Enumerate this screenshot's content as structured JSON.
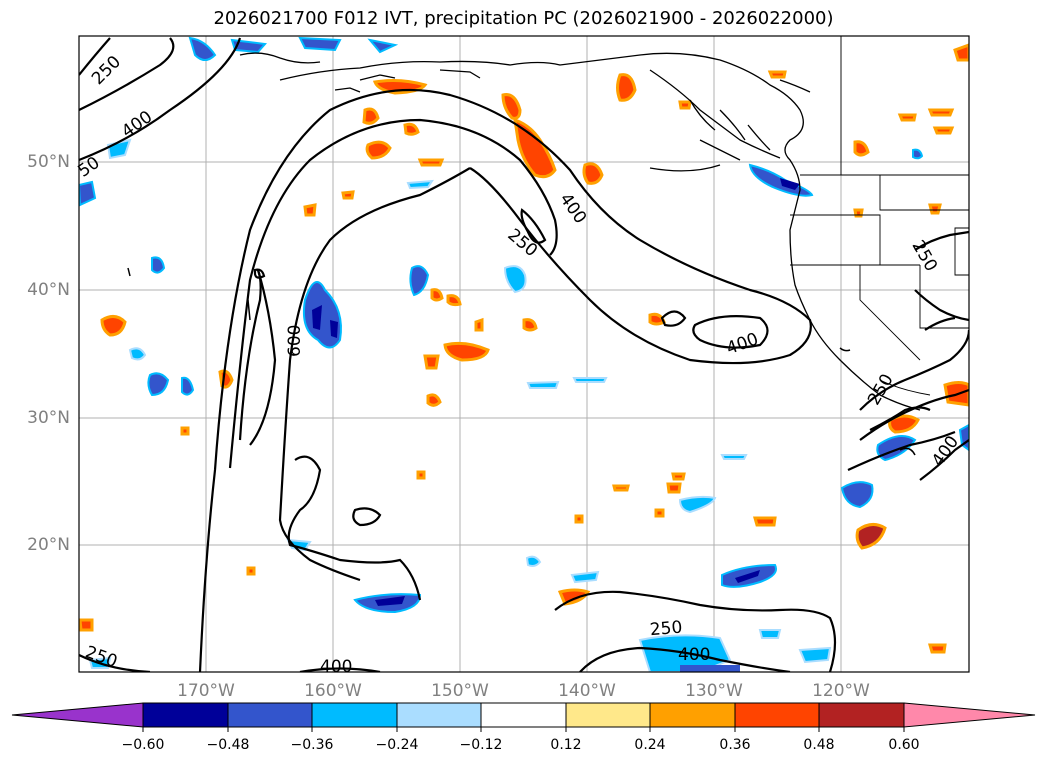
{
  "title": "2026021700 F012 IVT, precipitation PC (2026021900 - 2026022000)",
  "lat_labels": [
    "50°N",
    "40°N",
    "30°N",
    "20°N"
  ],
  "lon_labels": [
    "170°W",
    "160°W",
    "150°W",
    "140°W",
    "130°W",
    "120°W"
  ],
  "contour_labels": {
    "c250_nw": "250",
    "c400_nw": "400",
    "c50_w": "50",
    "c400_center": "400",
    "c250_center": "250",
    "c600": "600",
    "c400_east": "400",
    "c250_east": "250",
    "c250_coast": "250",
    "c400_coast": "400",
    "c250_sw": "250",
    "c400_sw": "400",
    "c250_s": "250",
    "c400_s": "400"
  },
  "colorbar": {
    "ticks": [
      "−0.60",
      "−0.48",
      "−0.36",
      "−0.24",
      "−0.12",
      "0.12",
      "0.24",
      "0.36",
      "0.48",
      "0.60"
    ],
    "colors": {
      "under": "#9933cc",
      "b1": "#000099",
      "b2": "#3355cc",
      "b3": "#00bbff",
      "b4": "#aaddff",
      "b5": "#ffffff",
      "b6": "#ffe88a",
      "b7": "#ffa000",
      "b8": "#ff4400",
      "b9": "#b22222",
      "over": "#ff88aa"
    }
  },
  "colors": {
    "grid": "#b0b0b0",
    "contour": "#000000",
    "coast": "#000000",
    "axis_label": "#808080"
  }
}
